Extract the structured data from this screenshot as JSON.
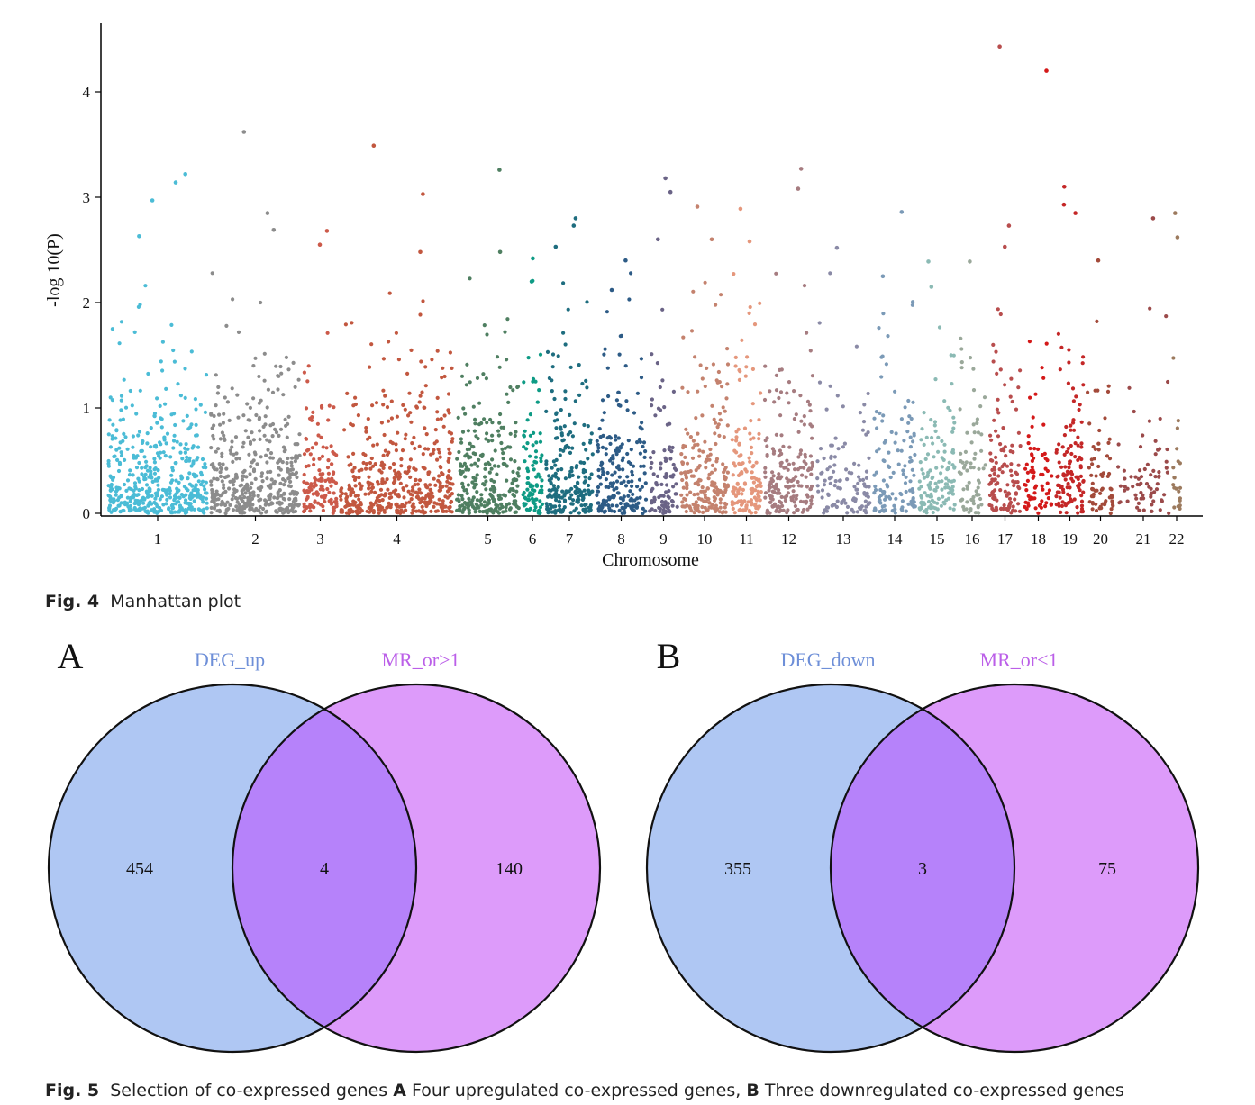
{
  "figure4": {
    "label": "Fig. 4",
    "caption": "Manhattan plot"
  },
  "figure5": {
    "label": "Fig. 5",
    "caption_intro": "Selection of co-expressed genes",
    "caption_a_label": "A",
    "caption_a_text": "Four upregulated co-expressed genes,",
    "caption_b_label": "B",
    "caption_b_text": "Three downregulated co-expressed genes"
  },
  "chart_data": [
    {
      "type": "scatter",
      "subtype": "manhattan",
      "title": "",
      "xlabel": "Chromosome",
      "ylabel": "-log 10(P)",
      "ylim": [
        0,
        4.6
      ],
      "yticks": [
        0,
        1,
        2,
        3,
        4
      ],
      "grid": false,
      "legend": "none",
      "chromosomes": [
        {
          "name": "1",
          "color": "#4bbcd6",
          "density": 1.0,
          "top_peaks": [
            3.22,
            3.14,
            2.97,
            2.63
          ]
        },
        {
          "name": "2",
          "color": "#8c8c8c",
          "density": 1.0,
          "top_peaks": [
            3.62,
            2.85,
            2.69
          ]
        },
        {
          "name": "3",
          "color": "#cc5a4a",
          "density": 0.85,
          "top_peaks": [
            2.68,
            2.55
          ]
        },
        {
          "name": "4",
          "color": "#c2573f",
          "density": 0.85,
          "top_peaks": [
            3.49,
            3.03,
            2.48
          ]
        },
        {
          "name": "5",
          "color": "#4f7f61",
          "density": 0.9,
          "top_peaks": [
            3.26,
            2.48
          ]
        },
        {
          "name": "6",
          "color": "#0e9b85",
          "density": 1.0,
          "top_peaks": [
            2.2,
            2.42
          ]
        },
        {
          "name": "7",
          "color": "#1e6d7f",
          "density": 0.95,
          "top_peaks": [
            2.8,
            2.73,
            2.53
          ]
        },
        {
          "name": "8",
          "color": "#2d5b86",
          "density": 0.85,
          "top_peaks": [
            2.4,
            2.12
          ]
        },
        {
          "name": "9",
          "color": "#6a6386",
          "density": 0.7,
          "top_peaks": [
            3.18,
            3.05,
            2.6
          ]
        },
        {
          "name": "10",
          "color": "#c4826e",
          "density": 0.95,
          "top_peaks": [
            2.91,
            2.6
          ]
        },
        {
          "name": "11",
          "color": "#e5977c",
          "density": 0.95,
          "top_peaks": [
            2.89,
            2.58
          ]
        },
        {
          "name": "12",
          "color": "#a67c80",
          "density": 0.85,
          "top_peaks": [
            3.27,
            3.08
          ]
        },
        {
          "name": "13",
          "color": "#8a8aa6",
          "density": 0.45,
          "top_peaks": [
            2.52
          ]
        },
        {
          "name": "14",
          "color": "#7b9ab7",
          "density": 0.6,
          "top_peaks": [
            2.86,
            2.25
          ]
        },
        {
          "name": "15",
          "color": "#8bbab4",
          "density": 0.75,
          "top_peaks": [
            2.39,
            2.15
          ]
        },
        {
          "name": "16",
          "color": "#9aa89a",
          "density": 0.55,
          "top_peaks": [
            2.39
          ]
        },
        {
          "name": "17",
          "color": "#b84d4d",
          "density": 0.8,
          "top_peaks": [
            4.43,
            2.73,
            2.53
          ]
        },
        {
          "name": "18",
          "color": "#d41919",
          "density": 0.55,
          "top_peaks": [
            4.2
          ]
        },
        {
          "name": "19",
          "color": "#c42727",
          "density": 0.9,
          "top_peaks": [
            3.1,
            2.93,
            2.85
          ]
        },
        {
          "name": "20",
          "color": "#a34a3a",
          "density": 0.55,
          "top_peaks": [
            2.4
          ]
        },
        {
          "name": "21",
          "color": "#9b4a4a",
          "density": 0.3,
          "top_peaks": [
            2.8
          ]
        },
        {
          "name": "22",
          "color": "#9c7a5e",
          "density": 0.6,
          "top_peaks": [
            2.85,
            2.62
          ]
        }
      ]
    },
    {
      "type": "venn",
      "panel": "A",
      "sets": [
        {
          "name": "DEG_up",
          "only": 454,
          "color": "#afc7f3",
          "label_color": "#6e8fd8"
        },
        {
          "name": "MR_or>1",
          "only": 140,
          "color": "#dd9bfa",
          "label_color": "#bb5fe8"
        }
      ],
      "intersection": 4,
      "intersection_color": "#b682fa"
    },
    {
      "type": "venn",
      "panel": "B",
      "sets": [
        {
          "name": "DEG_down",
          "only": 355,
          "color": "#afc7f3",
          "label_color": "#6e8fd8"
        },
        {
          "name": "MR_or<1",
          "only": 75,
          "color": "#dd9bfa",
          "label_color": "#bb5fe8"
        }
      ],
      "intersection": 3,
      "intersection_color": "#b682fa"
    }
  ]
}
